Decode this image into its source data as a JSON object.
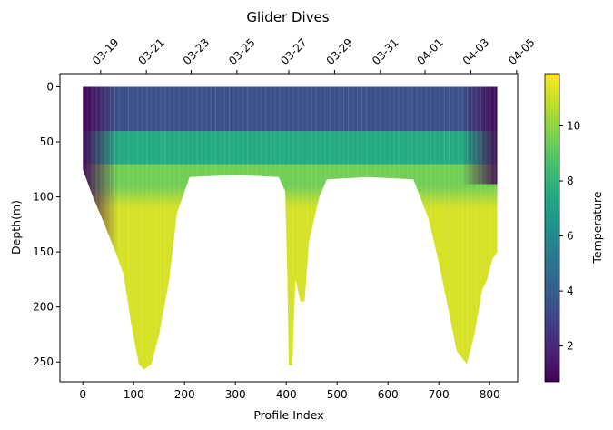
{
  "chart_data": {
    "type": "heatmap",
    "title": "Glider Dives",
    "xlabel": "Profile Index",
    "ylabel": "Depth(m)",
    "colorbar_label": "Temperature",
    "colormap": "viridis",
    "xlim": [
      -45,
      855
    ],
    "ylim": [
      268,
      -12
    ],
    "y_inverted": true,
    "x_ticks": [
      0,
      100,
      200,
      300,
      400,
      500,
      600,
      700,
      800
    ],
    "x_tick_labels": [
      "0",
      "100",
      "200",
      "300",
      "400",
      "500",
      "600",
      "700",
      "800"
    ],
    "y_ticks": [
      0,
      50,
      100,
      150,
      200,
      250
    ],
    "y_tick_labels": [
      "0",
      "50",
      "100",
      "150",
      "200",
      "250"
    ],
    "top_axis": {
      "tick_positions": [
        35,
        125,
        213,
        303,
        405,
        495,
        585,
        673,
        763,
        853
      ],
      "tick_labels": [
        "03-19",
        "03-21",
        "03-23",
        "03-25",
        "03-27",
        "03-29",
        "03-31",
        "04-01",
        "04-03",
        "04-05"
      ]
    },
    "colorbar": {
      "vmin": 0.7,
      "vmax": 11.9,
      "ticks": [
        2,
        4,
        6,
        8,
        10
      ],
      "tick_labels": [
        "2",
        "4",
        "6",
        "8",
        "10"
      ]
    },
    "profile_range": [
      0,
      815
    ],
    "max_depth_profile": [
      [
        0,
        75
      ],
      [
        20,
        100
      ],
      [
        40,
        122
      ],
      [
        60,
        145
      ],
      [
        80,
        170
      ],
      [
        95,
        215
      ],
      [
        110,
        252
      ],
      [
        120,
        257
      ],
      [
        135,
        252
      ],
      [
        150,
        225
      ],
      [
        170,
        175
      ],
      [
        185,
        115
      ],
      [
        210,
        82
      ],
      [
        300,
        80
      ],
      [
        385,
        82
      ],
      [
        398,
        95
      ],
      [
        402,
        170
      ],
      [
        405,
        253
      ],
      [
        412,
        253
      ],
      [
        418,
        175
      ],
      [
        428,
        195
      ],
      [
        436,
        195
      ],
      [
        445,
        140
      ],
      [
        465,
        100
      ],
      [
        480,
        84
      ],
      [
        560,
        82
      ],
      [
        650,
        84
      ],
      [
        680,
        120
      ],
      [
        700,
        160
      ],
      [
        720,
        205
      ],
      [
        735,
        240
      ],
      [
        755,
        252
      ],
      [
        770,
        225
      ],
      [
        785,
        185
      ],
      [
        795,
        175
      ],
      [
        805,
        157
      ],
      [
        815,
        150
      ]
    ],
    "temperature_layers": [
      {
        "depth_range": [
          0,
          40
        ],
        "approx_temperature": 3.5,
        "west_edge": 1.5,
        "east_edge": 1.5
      },
      {
        "depth_range": [
          40,
          70
        ],
        "approx_temperature": 7.5
      },
      {
        "depth_range": [
          70,
          90
        ],
        "approx_temperature": 9.5
      },
      {
        "depth_range": [
          110,
          260
        ],
        "approx_temperature": 11.2,
        "note": "deep basins"
      }
    ]
  }
}
